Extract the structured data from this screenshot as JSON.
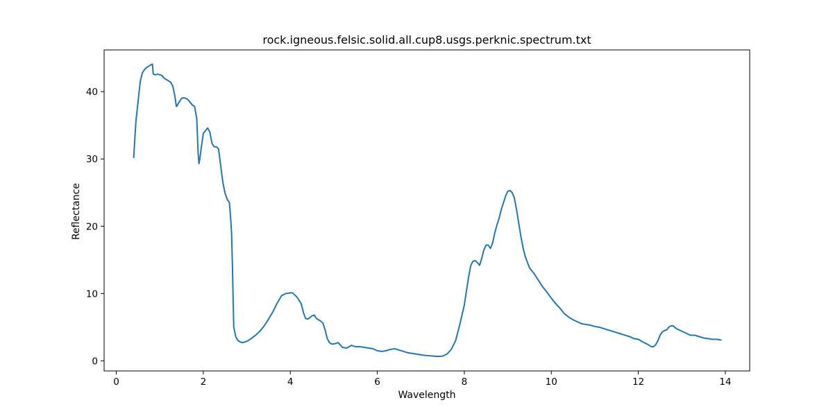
{
  "chart_data": {
    "type": "line",
    "title": "rock.igneous.felsic.solid.all.cup8.usgs.perknic.spectrum.txt",
    "xlabel": "Wavelength",
    "ylabel": "Reflectance",
    "xlim": [
      -0.28,
      14.56
    ],
    "ylim": [
      -1.5,
      46.2
    ],
    "xticks": [
      0,
      2,
      4,
      6,
      8,
      10,
      12,
      14
    ],
    "yticks": [
      0,
      10,
      20,
      30,
      40
    ],
    "grid": false,
    "legend": "none",
    "series": [
      {
        "color": "#1f77b4",
        "x": [
          0.4,
          0.45,
          0.5,
          0.55,
          0.6,
          0.65,
          0.7,
          0.75,
          0.8,
          0.83,
          0.85,
          0.9,
          0.95,
          1.0,
          1.05,
          1.1,
          1.15,
          1.2,
          1.25,
          1.3,
          1.35,
          1.38,
          1.4,
          1.42,
          1.45,
          1.5,
          1.55,
          1.6,
          1.65,
          1.7,
          1.75,
          1.8,
          1.85,
          1.88,
          1.9,
          1.92,
          1.95,
          2.0,
          2.05,
          2.1,
          2.15,
          2.2,
          2.25,
          2.3,
          2.35,
          2.4,
          2.45,
          2.5,
          2.55,
          2.6,
          2.63,
          2.65,
          2.67,
          2.7,
          2.75,
          2.8,
          2.85,
          2.9,
          3.0,
          3.1,
          3.2,
          3.3,
          3.4,
          3.5,
          3.6,
          3.7,
          3.8,
          3.9,
          4.0,
          4.05,
          4.1,
          4.15,
          4.2,
          4.25,
          4.3,
          4.35,
          4.4,
          4.45,
          4.5,
          4.55,
          4.6,
          4.65,
          4.7,
          4.75,
          4.8,
          4.85,
          4.9,
          4.95,
          5.0,
          5.1,
          5.2,
          5.3,
          5.4,
          5.5,
          5.6,
          5.7,
          5.8,
          5.9,
          6.0,
          6.1,
          6.2,
          6.3,
          6.4,
          6.5,
          6.6,
          6.7,
          6.8,
          6.9,
          7.0,
          7.1,
          7.2,
          7.3,
          7.4,
          7.5,
          7.6,
          7.7,
          7.8,
          7.9,
          8.0,
          8.1,
          8.15,
          8.2,
          8.25,
          8.3,
          8.35,
          8.4,
          8.45,
          8.5,
          8.55,
          8.6,
          8.65,
          8.7,
          8.75,
          8.8,
          8.85,
          8.9,
          8.95,
          9.0,
          9.05,
          9.1,
          9.15,
          9.2,
          9.25,
          9.3,
          9.35,
          9.4,
          9.5,
          9.6,
          9.7,
          9.8,
          9.9,
          10.0,
          10.1,
          10.2,
          10.3,
          10.4,
          10.5,
          10.6,
          10.7,
          10.8,
          10.9,
          11.0,
          11.1,
          11.2,
          11.3,
          11.4,
          11.5,
          11.6,
          11.7,
          11.8,
          11.9,
          12.0,
          12.1,
          12.2,
          12.3,
          12.35,
          12.4,
          12.45,
          12.5,
          12.55,
          12.6,
          12.65,
          12.7,
          12.75,
          12.8,
          12.85,
          12.9,
          13.0,
          13.1,
          13.2,
          13.3,
          13.4,
          13.5,
          13.6,
          13.7,
          13.8,
          13.9
        ],
        "y": [
          30.2,
          35.5,
          38.5,
          41.5,
          42.8,
          43.3,
          43.6,
          43.8,
          44.0,
          44.1,
          42.6,
          42.5,
          42.6,
          42.5,
          42.4,
          42.0,
          41.8,
          41.6,
          41.4,
          40.8,
          39.2,
          37.8,
          37.9,
          38.2,
          38.5,
          39.0,
          39.1,
          39.0,
          38.8,
          38.4,
          38.0,
          37.8,
          36.0,
          31.0,
          29.3,
          30.0,
          31.5,
          33.8,
          34.2,
          34.6,
          34.0,
          32.3,
          31.8,
          31.8,
          31.5,
          29.0,
          26.5,
          24.9,
          24.0,
          23.5,
          21.0,
          19.0,
          14.0,
          5.0,
          3.5,
          3.0,
          2.8,
          2.7,
          2.9,
          3.3,
          3.8,
          4.4,
          5.2,
          6.2,
          7.3,
          8.6,
          9.7,
          10.0,
          10.1,
          10.1,
          9.8,
          9.5,
          9.0,
          8.5,
          7.2,
          6.3,
          6.2,
          6.4,
          6.7,
          6.8,
          6.3,
          6.1,
          5.9,
          5.6,
          4.6,
          3.3,
          2.7,
          2.5,
          2.5,
          2.7,
          2.0,
          1.9,
          2.3,
          2.1,
          2.1,
          2.0,
          1.9,
          1.8,
          1.5,
          1.4,
          1.5,
          1.7,
          1.8,
          1.6,
          1.4,
          1.2,
          1.1,
          1.0,
          0.9,
          0.8,
          0.75,
          0.7,
          0.65,
          0.7,
          1.0,
          1.7,
          3.0,
          5.5,
          8.3,
          12.5,
          14.2,
          14.8,
          14.9,
          14.6,
          14.2,
          15.2,
          16.5,
          17.2,
          17.2,
          16.7,
          17.5,
          19.0,
          20.2,
          21.2,
          22.5,
          23.5,
          24.5,
          25.2,
          25.3,
          25.0,
          24.2,
          22.5,
          20.5,
          18.5,
          16.8,
          15.5,
          13.8,
          13.0,
          12.0,
          11.0,
          10.2,
          9.3,
          8.5,
          7.8,
          7.0,
          6.5,
          6.1,
          5.8,
          5.5,
          5.4,
          5.3,
          5.1,
          5.0,
          4.8,
          4.6,
          4.4,
          4.2,
          4.0,
          3.8,
          3.6,
          3.3,
          3.2,
          2.8,
          2.5,
          2.1,
          2.1,
          2.4,
          3.0,
          3.8,
          4.3,
          4.5,
          4.6,
          5.0,
          5.2,
          5.2,
          4.9,
          4.7,
          4.4,
          4.1,
          3.8,
          3.8,
          3.6,
          3.4,
          3.3,
          3.2,
          3.2,
          3.1
        ]
      }
    ]
  }
}
